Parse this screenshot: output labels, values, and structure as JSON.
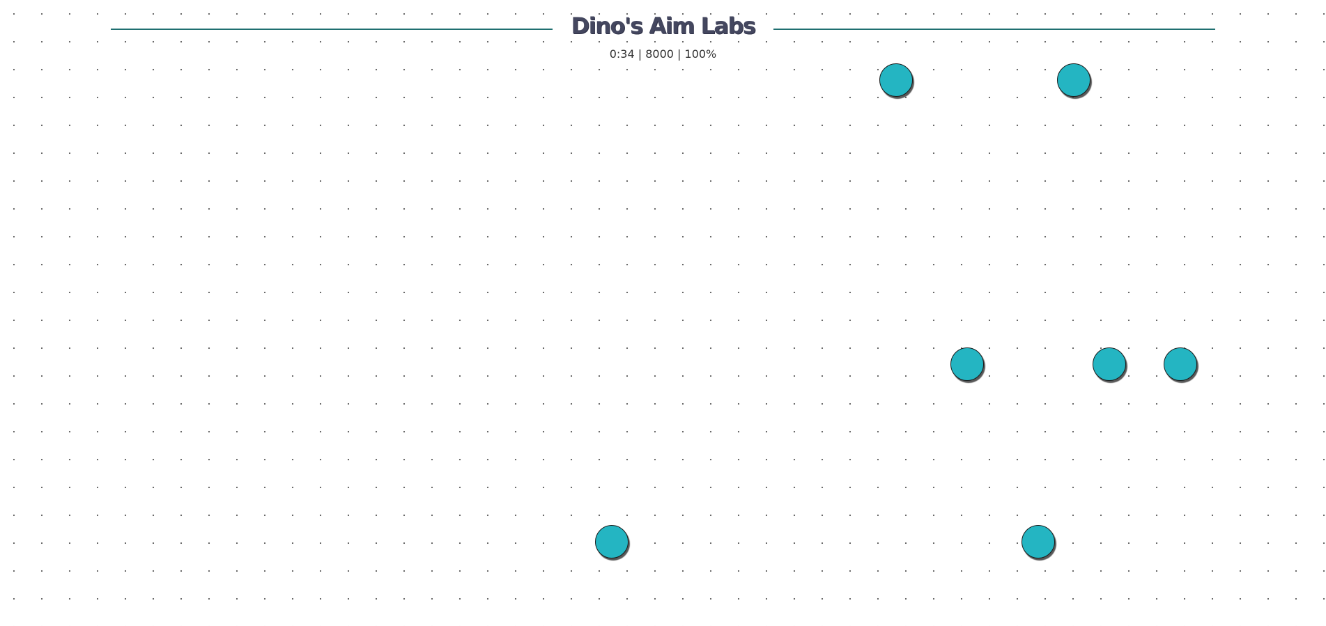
{
  "header": {
    "title": "Dino's Aim Labs",
    "stats": "0:34 | 8000 | 100%"
  },
  "colors": {
    "target": "#24b5c2",
    "title": "#44475f",
    "line": "#1f6f70"
  },
  "targets": [
    {
      "name": "target-1"
    },
    {
      "name": "target-2"
    },
    {
      "name": "target-3"
    },
    {
      "name": "target-4"
    },
    {
      "name": "target-5"
    },
    {
      "name": "target-6"
    },
    {
      "name": "target-7"
    }
  ]
}
